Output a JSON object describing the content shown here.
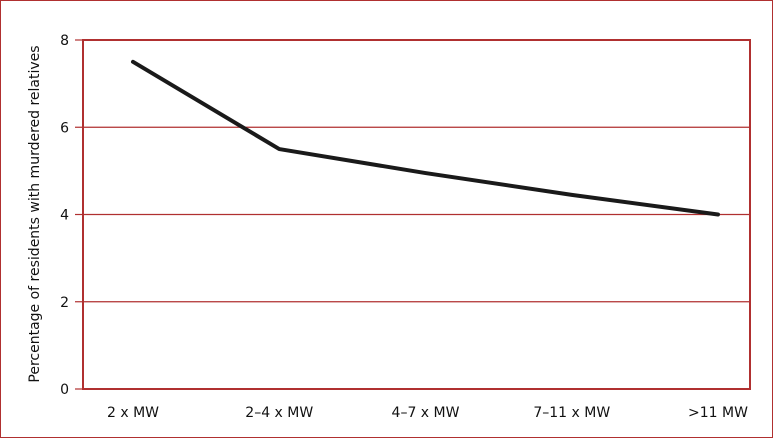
{
  "chart_data": {
    "type": "line",
    "title": "",
    "xlabel": "",
    "ylabel": "Percentage of residents with murdered relatives",
    "categories": [
      "2 x MW",
      "2–4 x MW",
      "4–7 x MW",
      "7–11 x MW",
      ">11 MW"
    ],
    "series": [
      {
        "name": "",
        "values": [
          7.5,
          5.5,
          4.95,
          4.45,
          4.0
        ]
      }
    ],
    "ylim": [
      0,
      8
    ],
    "yticks": [
      0,
      2,
      4,
      6,
      8
    ],
    "grid": true,
    "legend": "none",
    "colors": {
      "axis": "#b03030",
      "grid": "#b03030",
      "line": "#1a1a1a",
      "text": "#111111"
    }
  }
}
